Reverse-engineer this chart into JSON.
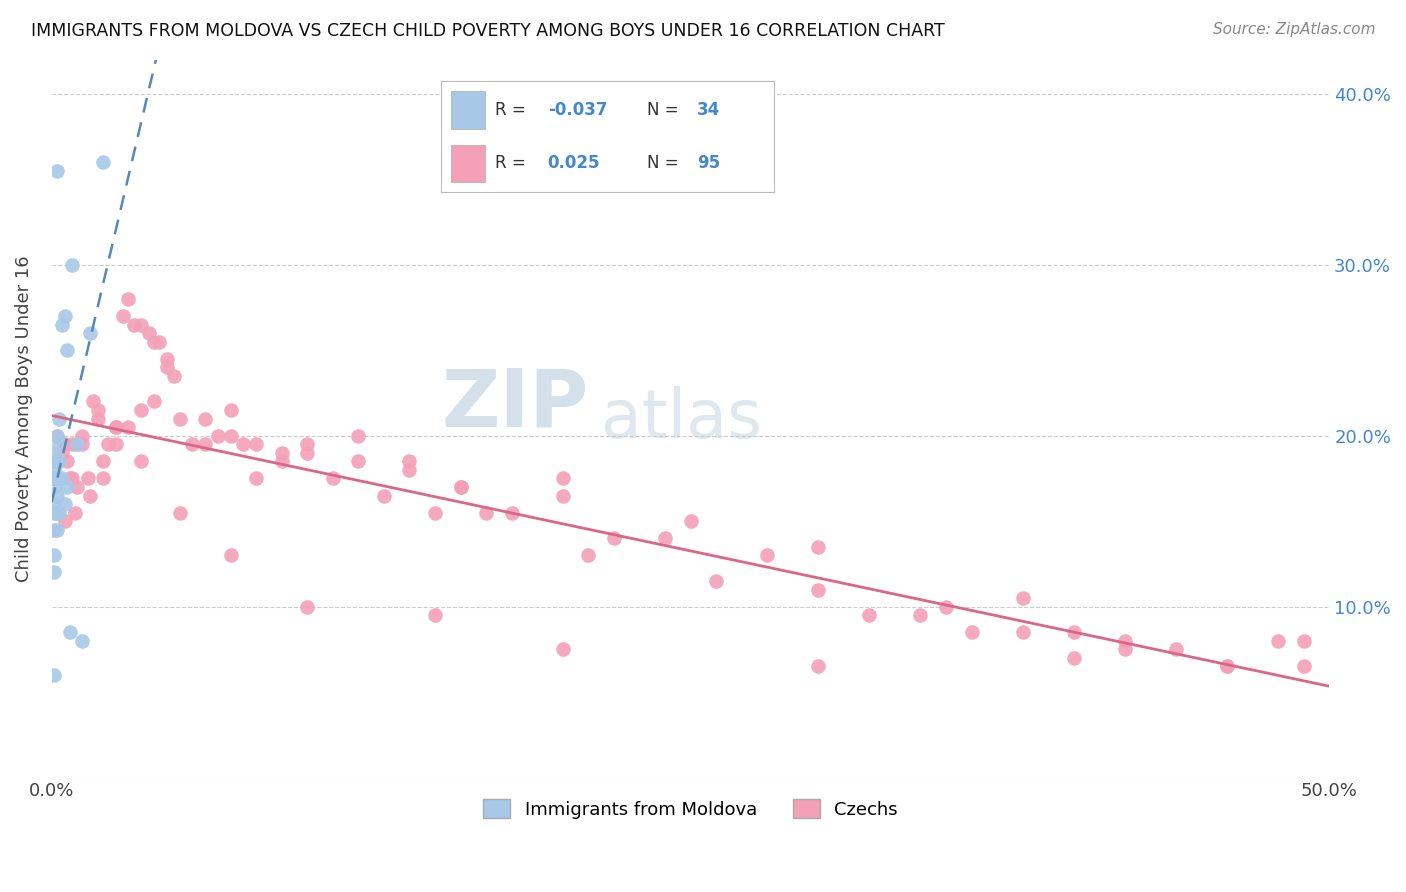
{
  "title": "IMMIGRANTS FROM MOLDOVA VS CZECH CHILD POVERTY AMONG BOYS UNDER 16 CORRELATION CHART",
  "source": "Source: ZipAtlas.com",
  "ylabel": "Child Poverty Among Boys Under 16",
  "xlim": [
    0.0,
    0.5
  ],
  "ylim": [
    0.0,
    0.42
  ],
  "color_moldova": "#a8c8e8",
  "color_czech": "#f4a0b8",
  "color_line_moldova": "#5588bb",
  "color_line_czech": "#dd6688",
  "watermark_zip": "ZIP",
  "watermark_atlas": "atlas",
  "moldova_x": [
    0.001,
    0.001,
    0.001,
    0.001,
    0.001,
    0.001,
    0.001,
    0.001,
    0.001,
    0.001,
    0.002,
    0.002,
    0.002,
    0.002,
    0.002,
    0.002,
    0.003,
    0.003,
    0.003,
    0.003,
    0.004,
    0.004,
    0.005,
    0.005,
    0.006,
    0.006,
    0.007,
    0.008,
    0.01,
    0.012,
    0.015,
    0.02,
    0.002,
    0.001
  ],
  "moldova_y": [
    0.145,
    0.155,
    0.16,
    0.17,
    0.175,
    0.18,
    0.185,
    0.19,
    0.13,
    0.12,
    0.145,
    0.155,
    0.165,
    0.175,
    0.185,
    0.2,
    0.155,
    0.185,
    0.195,
    0.21,
    0.175,
    0.265,
    0.16,
    0.27,
    0.17,
    0.25,
    0.085,
    0.3,
    0.195,
    0.08,
    0.26,
    0.36,
    0.355,
    0.06
  ],
  "czech_x": [
    0.002,
    0.004,
    0.005,
    0.006,
    0.007,
    0.008,
    0.009,
    0.01,
    0.012,
    0.014,
    0.016,
    0.018,
    0.02,
    0.022,
    0.025,
    0.028,
    0.03,
    0.032,
    0.035,
    0.038,
    0.04,
    0.042,
    0.045,
    0.048,
    0.05,
    0.055,
    0.06,
    0.065,
    0.07,
    0.075,
    0.08,
    0.09,
    0.1,
    0.11,
    0.12,
    0.13,
    0.14,
    0.15,
    0.16,
    0.17,
    0.18,
    0.2,
    0.21,
    0.22,
    0.24,
    0.26,
    0.28,
    0.3,
    0.32,
    0.34,
    0.36,
    0.38,
    0.4,
    0.42,
    0.44,
    0.46,
    0.49,
    0.01,
    0.015,
    0.02,
    0.025,
    0.03,
    0.035,
    0.04,
    0.045,
    0.06,
    0.07,
    0.08,
    0.09,
    0.1,
    0.12,
    0.14,
    0.16,
    0.2,
    0.25,
    0.3,
    0.35,
    0.38,
    0.42,
    0.46,
    0.005,
    0.008,
    0.012,
    0.018,
    0.025,
    0.035,
    0.05,
    0.07,
    0.1,
    0.15,
    0.2,
    0.3,
    0.4,
    0.48,
    0.49
  ],
  "czech_y": [
    0.2,
    0.19,
    0.195,
    0.185,
    0.175,
    0.195,
    0.155,
    0.195,
    0.2,
    0.175,
    0.22,
    0.215,
    0.185,
    0.195,
    0.205,
    0.27,
    0.28,
    0.265,
    0.265,
    0.26,
    0.255,
    0.255,
    0.245,
    0.235,
    0.21,
    0.195,
    0.195,
    0.2,
    0.2,
    0.195,
    0.175,
    0.19,
    0.195,
    0.175,
    0.2,
    0.165,
    0.185,
    0.155,
    0.17,
    0.155,
    0.155,
    0.165,
    0.13,
    0.14,
    0.14,
    0.115,
    0.13,
    0.11,
    0.095,
    0.095,
    0.085,
    0.085,
    0.085,
    0.075,
    0.075,
    0.065,
    0.08,
    0.17,
    0.165,
    0.175,
    0.195,
    0.205,
    0.215,
    0.22,
    0.24,
    0.21,
    0.215,
    0.195,
    0.185,
    0.19,
    0.185,
    0.18,
    0.17,
    0.175,
    0.15,
    0.135,
    0.1,
    0.105,
    0.08,
    0.065,
    0.15,
    0.175,
    0.195,
    0.21,
    0.205,
    0.185,
    0.155,
    0.13,
    0.1,
    0.095,
    0.075,
    0.065,
    0.07,
    0.08,
    0.065
  ]
}
